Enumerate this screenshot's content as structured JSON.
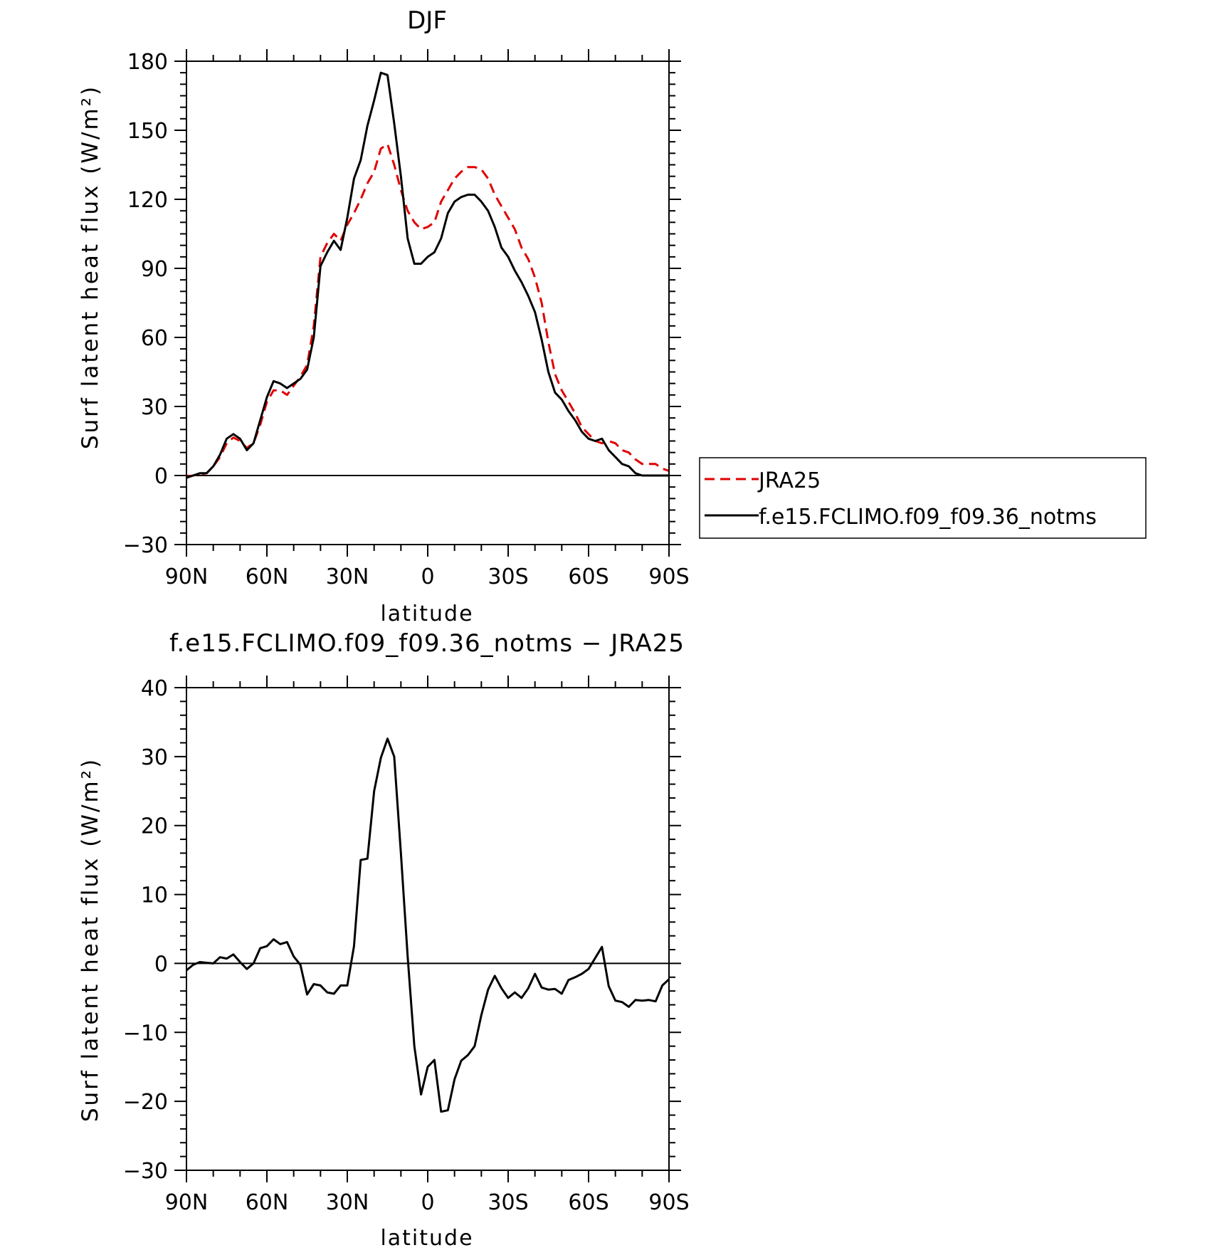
{
  "chart_data": [
    {
      "type": "line",
      "title": "DJF",
      "xlabel": "latitude",
      "ylabel": "Surf latent heat flux (W/m²)",
      "ylim": [
        -30,
        180
      ],
      "y_major_ticks": [
        -30,
        0,
        30,
        60,
        90,
        120,
        150,
        180
      ],
      "y_minor_step": 5,
      "xlim": [
        90,
        -90
      ],
      "x_ticks": [
        {
          "value": 90,
          "label": "90N"
        },
        {
          "value": 60,
          "label": "60N"
        },
        {
          "value": 30,
          "label": "30N"
        },
        {
          "value": 0,
          "label": "0"
        },
        {
          "value": -30,
          "label": "30S"
        },
        {
          "value": -60,
          "label": "60S"
        },
        {
          "value": -90,
          "label": "90S"
        }
      ],
      "x_minor_step": 10,
      "legend": {
        "placement": "right",
        "entries": [
          {
            "label": "JRA25",
            "style": "dashed",
            "color": "#e00000"
          },
          {
            "label": "f.e15.FCLIMO.f09_f09.36_notms",
            "style": "solid",
            "color": "#000000"
          }
        ]
      },
      "series": [
        {
          "name": "JRA25",
          "color": "#e00000",
          "dash": true,
          "points": [
            [
              90,
              -0.5
            ],
            [
              87.5,
              0
            ],
            [
              85,
              0.5
            ],
            [
              82.5,
              1
            ],
            [
              80,
              4
            ],
            [
              77.5,
              8
            ],
            [
              75,
              14
            ],
            [
              72.5,
              16.5
            ],
            [
              70,
              15
            ],
            [
              67.5,
              12
            ],
            [
              65,
              14
            ],
            [
              62.5,
              22
            ],
            [
              60,
              32
            ],
            [
              57.5,
              37
            ],
            [
              55,
              37
            ],
            [
              52.5,
              35
            ],
            [
              50,
              39
            ],
            [
              47.5,
              43
            ],
            [
              45,
              48
            ],
            [
              42.5,
              65
            ],
            [
              40,
              95
            ],
            [
              37.5,
              101
            ],
            [
              35,
              105
            ],
            [
              32.5,
              102
            ],
            [
              30,
              109
            ],
            [
              27.5,
              114
            ],
            [
              25,
              120
            ],
            [
              22.5,
              127
            ],
            [
              20,
              132
            ],
            [
              17.5,
              142
            ],
            [
              15,
              144
            ],
            [
              12.5,
              135
            ],
            [
              10,
              124
            ],
            [
              7.5,
              115
            ],
            [
              5,
              110
            ],
            [
              2.5,
              107
            ],
            [
              0,
              108
            ],
            [
              -2.5,
              110
            ],
            [
              -5,
              119
            ],
            [
              -7.5,
              124
            ],
            [
              -10,
              129
            ],
            [
              -12.5,
              132
            ],
            [
              -15,
              134
            ],
            [
              -17.5,
              134
            ],
            [
              -20,
              133
            ],
            [
              -22.5,
              129
            ],
            [
              -25,
              122
            ],
            [
              -27.5,
              117
            ],
            [
              -30,
              112
            ],
            [
              -32.5,
              107
            ],
            [
              -35,
              99
            ],
            [
              -37.5,
              94
            ],
            [
              -40,
              86
            ],
            [
              -42.5,
              75
            ],
            [
              -45,
              58
            ],
            [
              -47.5,
              44
            ],
            [
              -50,
              37
            ],
            [
              -52.5,
              32
            ],
            [
              -55,
              27
            ],
            [
              -57.5,
              21
            ],
            [
              -60,
              18
            ],
            [
              -62.5,
              15
            ],
            [
              -65,
              14
            ],
            [
              -67.5,
              15
            ],
            [
              -70,
              14
            ],
            [
              -72.5,
              11
            ],
            [
              -75,
              10
            ],
            [
              -77.5,
              7
            ],
            [
              -80,
              5
            ],
            [
              -82.5,
              5
            ],
            [
              -85,
              5
            ],
            [
              -87.5,
              3
            ],
            [
              -90,
              2
            ]
          ]
        },
        {
          "name": "f.e15.FCLIMO.f09_f09.36_notms",
          "color": "#000000",
          "dash": false,
          "points": [
            [
              90,
              -1
            ],
            [
              87.5,
              0
            ],
            [
              85,
              1
            ],
            [
              82.5,
              1
            ],
            [
              80,
              4
            ],
            [
              77.5,
              9
            ],
            [
              75,
              16
            ],
            [
              72.5,
              18
            ],
            [
              70,
              16
            ],
            [
              67.5,
              11
            ],
            [
              65,
              14
            ],
            [
              62.5,
              24
            ],
            [
              60,
              34
            ],
            [
              57.5,
              41
            ],
            [
              55,
              40
            ],
            [
              52.5,
              38
            ],
            [
              50,
              40
            ],
            [
              47.5,
              42
            ],
            [
              45,
              46
            ],
            [
              42.5,
              60
            ],
            [
              40,
              91
            ],
            [
              37.5,
              97
            ],
            [
              35,
              102
            ],
            [
              32.5,
              98
            ],
            [
              30,
              112
            ],
            [
              27.5,
              129
            ],
            [
              25,
              137
            ],
            [
              22.5,
              152
            ],
            [
              20,
              163
            ],
            [
              17.5,
              175
            ],
            [
              15,
              174
            ],
            [
              12.5,
              153
            ],
            [
              10,
              130
            ],
            [
              7.5,
              103
            ],
            [
              5,
              92
            ],
            [
              2.5,
              92
            ],
            [
              0,
              95
            ],
            [
              -2.5,
              97
            ],
            [
              -5,
              103
            ],
            [
              -7.5,
              114
            ],
            [
              -10,
              119
            ],
            [
              -12.5,
              121
            ],
            [
              -15,
              122
            ],
            [
              -17.5,
              122
            ],
            [
              -20,
              119
            ],
            [
              -22.5,
              115
            ],
            [
              -25,
              108
            ],
            [
              -27.5,
              99
            ],
            [
              -30,
              95
            ],
            [
              -32.5,
              89
            ],
            [
              -35,
              84
            ],
            [
              -37.5,
              78
            ],
            [
              -40,
              71
            ],
            [
              -42.5,
              59
            ],
            [
              -45,
              45
            ],
            [
              -47.5,
              36
            ],
            [
              -50,
              33
            ],
            [
              -52.5,
              28
            ],
            [
              -55,
              24
            ],
            [
              -57.5,
              19
            ],
            [
              -60,
              16
            ],
            [
              -62.5,
              15
            ],
            [
              -65,
              16
            ],
            [
              -67.5,
              11
            ],
            [
              -70,
              8
            ],
            [
              -72.5,
              5
            ],
            [
              -75,
              4
            ],
            [
              -77.5,
              1
            ],
            [
              -80,
              0
            ],
            [
              -82.5,
              0
            ],
            [
              -85,
              0
            ],
            [
              -87.5,
              0
            ],
            [
              -90,
              0
            ]
          ]
        }
      ]
    },
    {
      "type": "line",
      "title": "f.e15.FCLIMO.f09_f09.36_notms − JRA25",
      "xlabel": "latitude",
      "ylabel": "Surf latent heat flux (W/m²)",
      "ylim": [
        -30,
        40
      ],
      "y_major_ticks": [
        -30,
        -20,
        -10,
        0,
        10,
        20,
        30,
        40
      ],
      "y_minor_step": 2,
      "xlim": [
        90,
        -90
      ],
      "x_ticks": [
        {
          "value": 90,
          "label": "90N"
        },
        {
          "value": 60,
          "label": "60N"
        },
        {
          "value": 30,
          "label": "30N"
        },
        {
          "value": 0,
          "label": "0"
        },
        {
          "value": -30,
          "label": "30S"
        },
        {
          "value": -60,
          "label": "60S"
        },
        {
          "value": -90,
          "label": "90S"
        }
      ],
      "x_minor_step": 10,
      "series": [
        {
          "color": "#000000",
          "dash": false,
          "points": [
            [
              90,
              -1
            ],
            [
              87.5,
              -0.2
            ],
            [
              85,
              0.2
            ],
            [
              82.5,
              0.1
            ],
            [
              80,
              0
            ],
            [
              77.5,
              0.9
            ],
            [
              75,
              0.7
            ],
            [
              72.5,
              1.3
            ],
            [
              70,
              0.2
            ],
            [
              67.5,
              -0.8
            ],
            [
              65,
              0
            ],
            [
              62.5,
              2.2
            ],
            [
              60,
              2.5
            ],
            [
              57.5,
              3.5
            ],
            [
              55,
              2.8
            ],
            [
              52.5,
              3.1
            ],
            [
              50,
              1
            ],
            [
              47.5,
              -0.2
            ],
            [
              45,
              -4.5
            ],
            [
              42.5,
              -3
            ],
            [
              40,
              -3.2
            ],
            [
              37.5,
              -4.2
            ],
            [
              35,
              -4.4
            ],
            [
              32.5,
              -3.2
            ],
            [
              30,
              -3.2
            ],
            [
              27.5,
              2.5
            ],
            [
              25,
              15
            ],
            [
              22.5,
              15.2
            ],
            [
              20,
              25
            ],
            [
              17.5,
              29.8
            ],
            [
              15,
              32.6
            ],
            [
              12.5,
              30
            ],
            [
              10,
              16
            ],
            [
              7.5,
              1
            ],
            [
              5,
              -12
            ],
            [
              2.5,
              -19
            ],
            [
              0,
              -15
            ],
            [
              -2.5,
              -14
            ],
            [
              -5,
              -21.5
            ],
            [
              -7.5,
              -21.3
            ],
            [
              -10,
              -16.8
            ],
            [
              -12.5,
              -14.1
            ],
            [
              -15,
              -13.3
            ],
            [
              -17.5,
              -12
            ],
            [
              -20,
              -7.5
            ],
            [
              -22.5,
              -3.8
            ],
            [
              -25,
              -1.8
            ],
            [
              -27.5,
              -3.6
            ],
            [
              -30,
              -5
            ],
            [
              -32.5,
              -4.2
            ],
            [
              -35,
              -5
            ],
            [
              -37.5,
              -3.6
            ],
            [
              -40,
              -1.5
            ],
            [
              -42.5,
              -3.5
            ],
            [
              -45,
              -3.8
            ],
            [
              -47.5,
              -3.7
            ],
            [
              -50,
              -4.4
            ],
            [
              -52.5,
              -2.4
            ],
            [
              -55,
              -2
            ],
            [
              -57.5,
              -1.5
            ],
            [
              -60,
              -0.8
            ],
            [
              -62.5,
              0.8
            ],
            [
              -65,
              2.4
            ],
            [
              -67.5,
              -3.3
            ],
            [
              -70,
              -5.4
            ],
            [
              -72.5,
              -5.6
            ],
            [
              -75,
              -6.3
            ],
            [
              -77.5,
              -5.3
            ],
            [
              -80,
              -5.4
            ],
            [
              -82.5,
              -5.3
            ],
            [
              -85,
              -5.5
            ],
            [
              -87.5,
              -3.2
            ],
            [
              -90,
              -2.3
            ]
          ]
        }
      ]
    }
  ]
}
